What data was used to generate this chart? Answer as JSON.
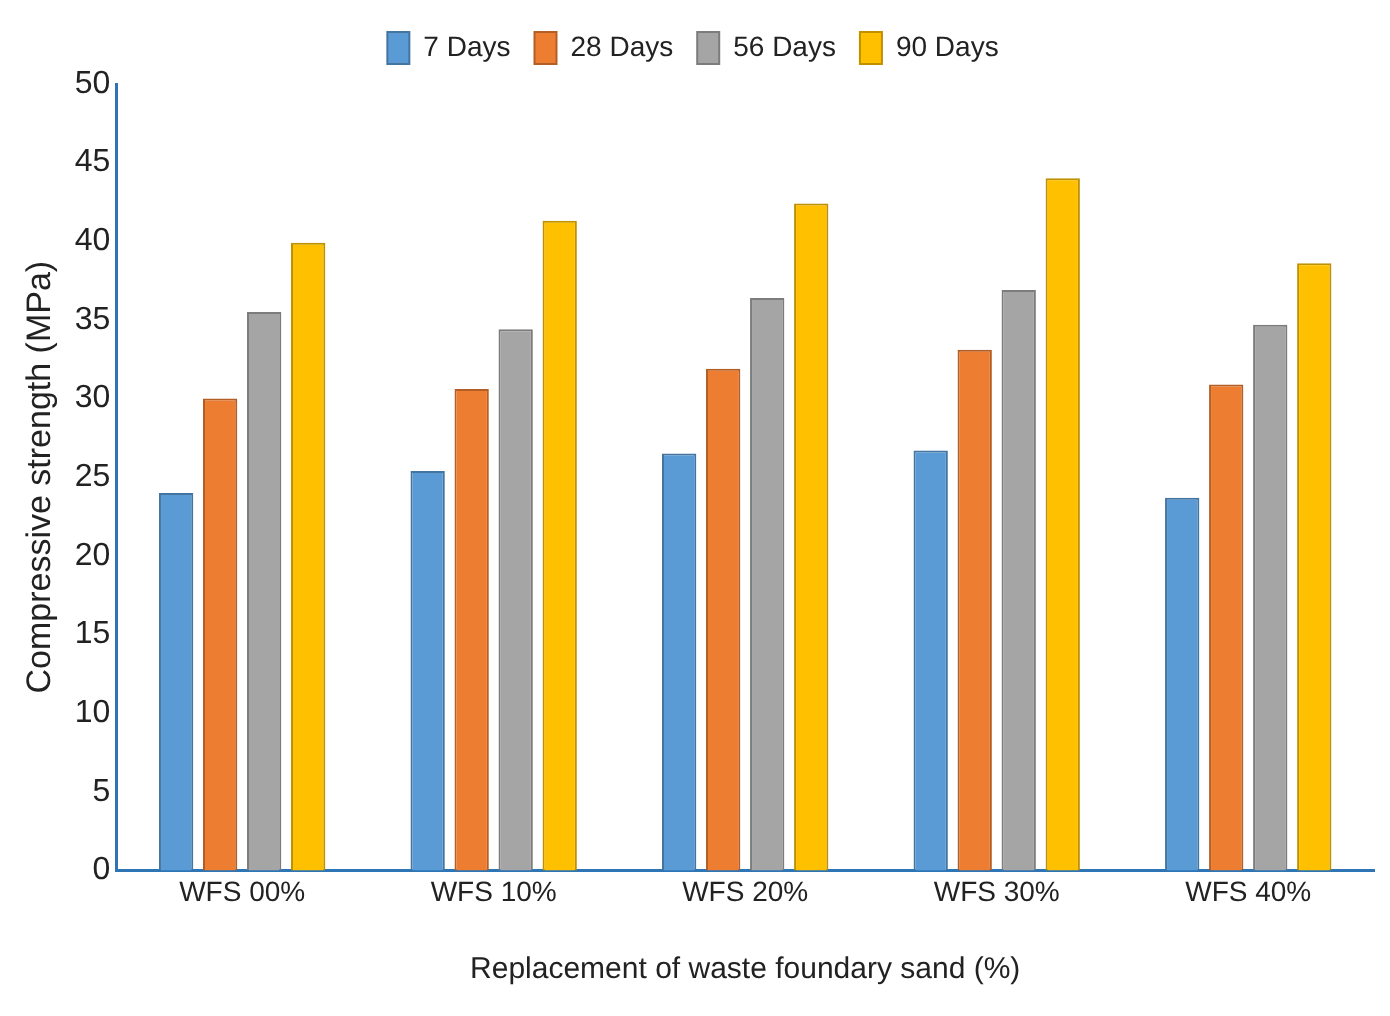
{
  "chart_data": {
    "type": "bar",
    "xlabel": "Replacement of waste foundary sand (%)",
    "ylabel": "Compressive strength (MPa)",
    "categories": [
      "WFS 00%",
      "WFS 10%",
      "WFS 20%",
      "WFS 30%",
      "WFS 40%"
    ],
    "series": [
      {
        "name": "7 Days",
        "color": "#5b9bd5",
        "values": [
          24.0,
          25.4,
          26.5,
          26.7,
          23.7
        ]
      },
      {
        "name": "28 Days",
        "color": "#ed7d31",
        "values": [
          30.0,
          30.6,
          31.9,
          33.1,
          30.9
        ]
      },
      {
        "name": "56 Days",
        "color": "#a5a5a5",
        "values": [
          35.5,
          34.4,
          36.4,
          36.9,
          34.7
        ]
      },
      {
        "name": "90 Days",
        "color": "#ffc000",
        "values": [
          39.9,
          41.3,
          42.4,
          44.0,
          38.6
        ]
      }
    ],
    "ylim": [
      0,
      50
    ],
    "yticks": [
      0,
      5,
      10,
      15,
      20,
      25,
      30,
      35,
      40,
      45,
      50
    ],
    "grid": false,
    "legend": "top"
  }
}
